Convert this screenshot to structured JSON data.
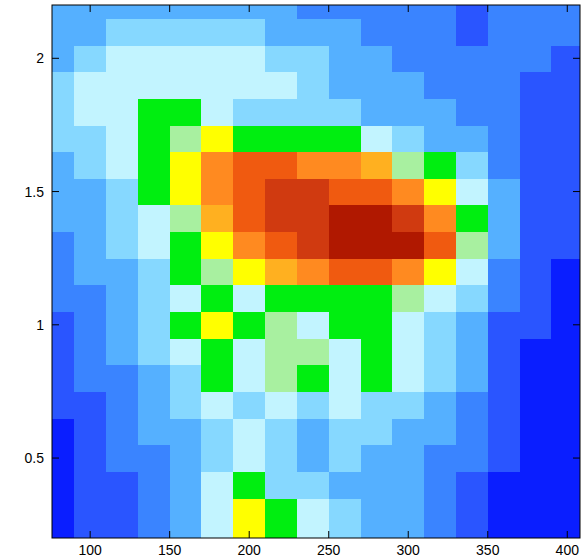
{
  "chart_data": {
    "type": "heatmap",
    "x": [
      80,
      100,
      120,
      140,
      160,
      180,
      200,
      220,
      240,
      260,
      280,
      300,
      320,
      340,
      360,
      380,
      400
    ],
    "y": [
      0.3,
      0.4,
      0.5,
      0.6,
      0.7,
      0.8,
      0.9,
      1.0,
      1.1,
      1.2,
      1.3,
      1.4,
      1.5,
      1.6,
      1.7,
      1.8,
      1.9,
      2.0,
      2.1,
      2.2
    ],
    "values": [
      [
        0,
        1,
        1,
        2,
        3,
        5,
        8,
        6,
        5,
        4,
        3,
        3,
        2,
        1,
        0,
        0,
        0
      ],
      [
        0,
        1,
        1,
        2,
        3,
        5,
        6,
        4,
        4,
        3,
        3,
        3,
        2,
        1,
        0,
        0,
        0
      ],
      [
        0,
        1,
        2,
        2,
        3,
        4,
        5,
        4,
        3,
        4,
        3,
        3,
        2,
        2,
        1,
        0,
        0
      ],
      [
        0,
        1,
        2,
        3,
        3,
        4,
        5,
        4,
        3,
        4,
        4,
        3,
        3,
        2,
        1,
        0,
        0
      ],
      [
        1,
        1,
        2,
        3,
        4,
        5,
        4,
        5,
        4,
        5,
        4,
        4,
        3,
        2,
        1,
        0,
        0
      ],
      [
        1,
        2,
        2,
        3,
        4,
        6,
        5,
        7,
        6,
        5,
        6,
        5,
        4,
        3,
        1,
        0,
        0
      ],
      [
        1,
        2,
        3,
        4,
        5,
        6,
        5,
        7,
        7,
        5,
        6,
        5,
        4,
        3,
        1,
        0,
        0
      ],
      [
        1,
        2,
        3,
        4,
        6,
        8,
        6,
        7,
        5,
        6,
        6,
        5,
        4,
        3,
        1,
        1,
        0
      ],
      [
        2,
        2,
        3,
        4,
        5,
        6,
        5,
        6,
        6,
        6,
        6,
        7,
        5,
        4,
        2,
        1,
        0
      ],
      [
        2,
        3,
        3,
        4,
        6,
        7,
        8,
        9,
        10,
        11,
        11,
        10,
        8,
        5,
        2,
        1,
        0
      ],
      [
        2,
        3,
        4,
        5,
        6,
        8,
        10,
        11,
        12,
        13,
        13,
        13,
        11,
        7,
        3,
        1,
        1
      ],
      [
        3,
        3,
        4,
        5,
        7,
        9,
        11,
        12,
        12,
        13,
        13,
        12,
        10,
        6,
        3,
        1,
        1
      ],
      [
        3,
        3,
        4,
        6,
        8,
        10,
        11,
        12,
        12,
        11,
        11,
        10,
        8,
        5,
        3,
        1,
        1
      ],
      [
        3,
        4,
        5,
        6,
        8,
        10,
        11,
        11,
        10,
        10,
        9,
        7,
        6,
        4,
        2,
        1,
        1
      ],
      [
        4,
        4,
        5,
        6,
        7,
        8,
        6,
        6,
        6,
        6,
        5,
        4,
        3,
        3,
        2,
        1,
        1
      ],
      [
        4,
        5,
        5,
        6,
        6,
        5,
        4,
        4,
        4,
        4,
        3,
        3,
        3,
        2,
        2,
        1,
        1
      ],
      [
        4,
        5,
        5,
        5,
        5,
        5,
        5,
        5,
        4,
        3,
        3,
        3,
        2,
        2,
        2,
        1,
        1
      ],
      [
        3,
        4,
        5,
        5,
        5,
        5,
        5,
        4,
        4,
        3,
        3,
        2,
        2,
        2,
        2,
        2,
        1
      ],
      [
        3,
        3,
        4,
        4,
        4,
        4,
        4,
        3,
        3,
        3,
        2,
        2,
        2,
        1,
        2,
        2,
        2
      ],
      [
        3,
        3,
        3,
        3,
        3,
        3,
        3,
        3,
        2,
        2,
        2,
        2,
        2,
        1,
        2,
        2,
        2
      ]
    ],
    "zlim": [
      0,
      14
    ],
    "xlim": [
      76,
      408
    ],
    "ylim": [
      0.2,
      2.2
    ],
    "xticks": [
      100,
      150,
      200,
      250,
      300,
      350,
      400
    ],
    "yticks": [
      0.5,
      1,
      1.5,
      2
    ]
  }
}
